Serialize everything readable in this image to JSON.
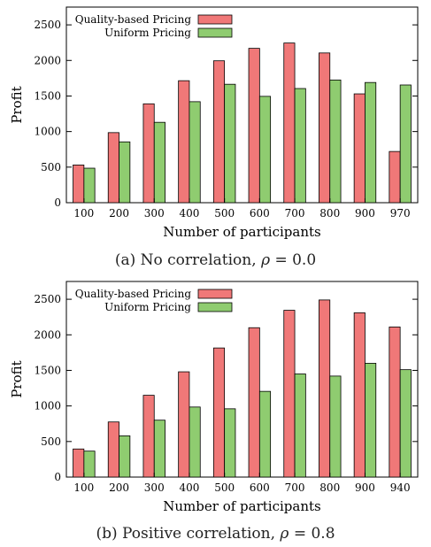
{
  "colors": {
    "quality": "#f07878",
    "uniform": "#8fcc70",
    "axis": "#000000"
  },
  "chart_data": [
    {
      "type": "bar",
      "title": "",
      "xlabel": "Number of participants",
      "ylabel": "Profit",
      "ylim": [
        0,
        2750
      ],
      "yticks": [
        0,
        500,
        1000,
        1500,
        2000,
        2500
      ],
      "grid": false,
      "legend_position": "top-left",
      "categories": [
        "100",
        "200",
        "300",
        "400",
        "500",
        "600",
        "700",
        "800",
        "900",
        "970"
      ],
      "series": [
        {
          "name": "Quality-based Pricing",
          "values": [
            530,
            985,
            1390,
            1715,
            1995,
            2170,
            2245,
            2105,
            1530,
            720
          ]
        },
        {
          "name": "Uniform Pricing",
          "values": [
            485,
            855,
            1130,
            1420,
            1665,
            1495,
            1605,
            1725,
            1690,
            1655
          ]
        }
      ],
      "caption_prefix": "(a) No correlation,",
      "caption_var": "ρ",
      "caption_value": "= 0.0"
    },
    {
      "type": "bar",
      "title": "",
      "xlabel": "Number of participants",
      "ylabel": "Profit",
      "ylim": [
        0,
        2750
      ],
      "yticks": [
        0,
        500,
        1000,
        1500,
        2000,
        2500
      ],
      "grid": false,
      "legend_position": "top-left",
      "categories": [
        "100",
        "200",
        "300",
        "400",
        "500",
        "600",
        "700",
        "800",
        "900",
        "940"
      ],
      "series": [
        {
          "name": "Quality-based Pricing",
          "values": [
            395,
            775,
            1150,
            1480,
            1815,
            2100,
            2345,
            2490,
            2310,
            2110
          ]
        },
        {
          "name": "Uniform Pricing",
          "values": [
            365,
            580,
            800,
            985,
            960,
            1205,
            1450,
            1420,
            1600,
            1510
          ]
        }
      ],
      "caption_prefix": "(b) Positive correlation,",
      "caption_var": "ρ",
      "caption_value": "= 0.8"
    }
  ]
}
